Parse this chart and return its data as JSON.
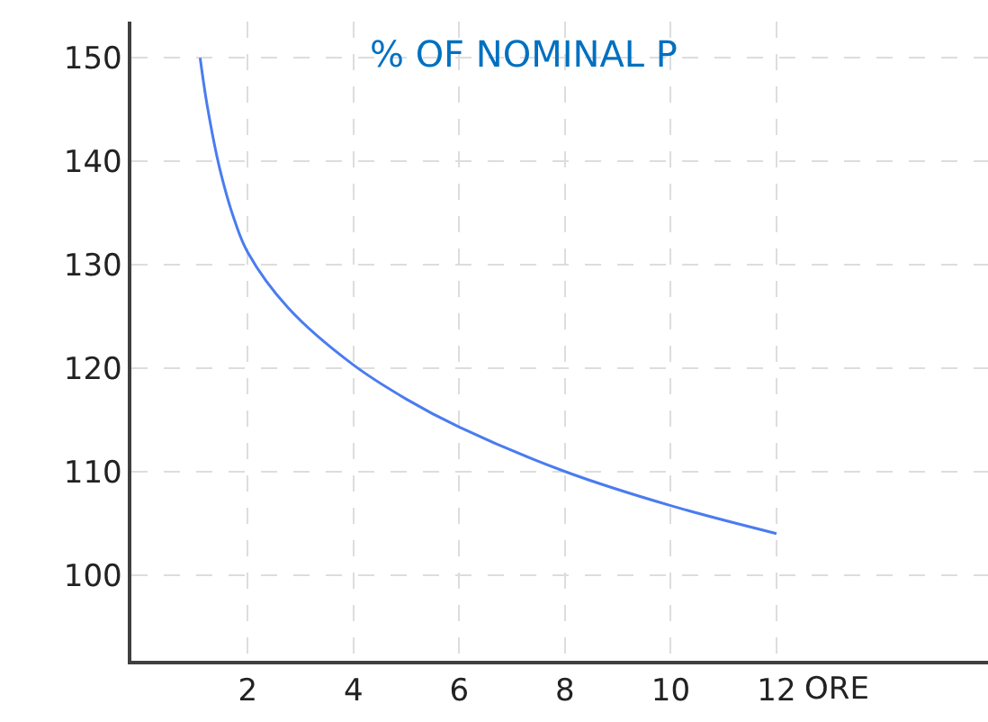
{
  "chart_data": {
    "type": "line",
    "title": "% OF NOMINAL P",
    "xlabel": "ORE",
    "x": [
      1.1,
      1.24,
      1.47,
      1.75,
      2,
      2.77,
      4,
      5,
      6,
      8,
      10,
      12
    ],
    "series": [
      {
        "color": "#4a7cf0",
        "values": [
          150,
          145.2,
          139.3,
          134.3,
          131.2,
          125.8,
          120.3,
          117,
          114.3,
          110,
          106.7,
          104
        ]
      }
    ],
    "xlim": [
      -0.2,
      16
    ],
    "xticks": [
      2,
      4,
      6,
      8,
      10,
      12
    ],
    "ylim": [
      91.7,
      153.5
    ],
    "yticks": [
      100,
      110,
      120,
      130,
      140,
      150
    ],
    "grid": true,
    "legend": false,
    "marker": "none",
    "line_style": "solid"
  }
}
